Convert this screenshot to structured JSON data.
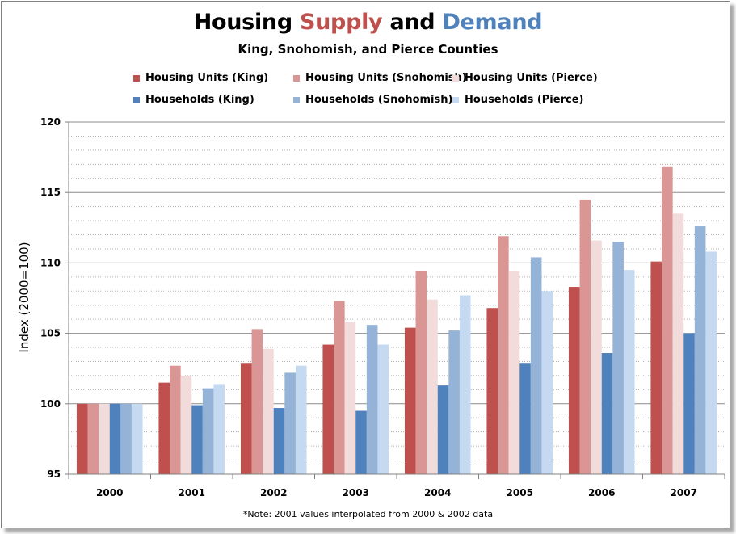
{
  "chart_data": {
    "type": "bar",
    "title_parts": [
      "Housing ",
      "Supply",
      " and ",
      "Demand"
    ],
    "subtitle": "King, Snohomish, and Pierce Counties",
    "ylabel": "Index (2000=100)",
    "xlabel": "",
    "ylim": [
      95,
      120
    ],
    "yticks": [
      "95",
      "100",
      "105",
      "110",
      "115",
      "120"
    ],
    "grid": true,
    "legend_placement": "top",
    "categories": [
      "2000",
      "2001",
      "2002",
      "2003",
      "2004",
      "2005",
      "2006",
      "2007"
    ],
    "series": [
      {
        "name": "Housing Units (King)",
        "color": "#C0504D",
        "values": [
          100,
          101.5,
          102.9,
          104.2,
          105.4,
          106.8,
          108.3,
          110.1
        ]
      },
      {
        "name": "Housing Units (Snohomish)",
        "color": "#DA9694",
        "values": [
          100,
          102.7,
          105.3,
          107.3,
          109.4,
          111.9,
          114.5,
          116.8
        ]
      },
      {
        "name": "Housing Units (Pierce)",
        "color": "#F2DCDB",
        "values": [
          100,
          102.0,
          103.9,
          105.8,
          107.4,
          109.4,
          111.6,
          113.5
        ]
      },
      {
        "name": "Households (King)",
        "color": "#4F81BD",
        "values": [
          100,
          99.9,
          99.7,
          99.5,
          101.3,
          102.9,
          103.6,
          105.0
        ]
      },
      {
        "name": "Households (Snohomish)",
        "color": "#95B3D7",
        "values": [
          100,
          101.1,
          102.2,
          105.6,
          105.2,
          110.4,
          111.5,
          112.6
        ]
      },
      {
        "name": "Households (Pierce)",
        "color": "#C5D9F1",
        "values": [
          100,
          101.4,
          102.7,
          104.2,
          107.7,
          108.0,
          109.5,
          110.8
        ]
      }
    ],
    "note": "*Note: 2001 values interpolated from 2000 & 2002 data"
  }
}
